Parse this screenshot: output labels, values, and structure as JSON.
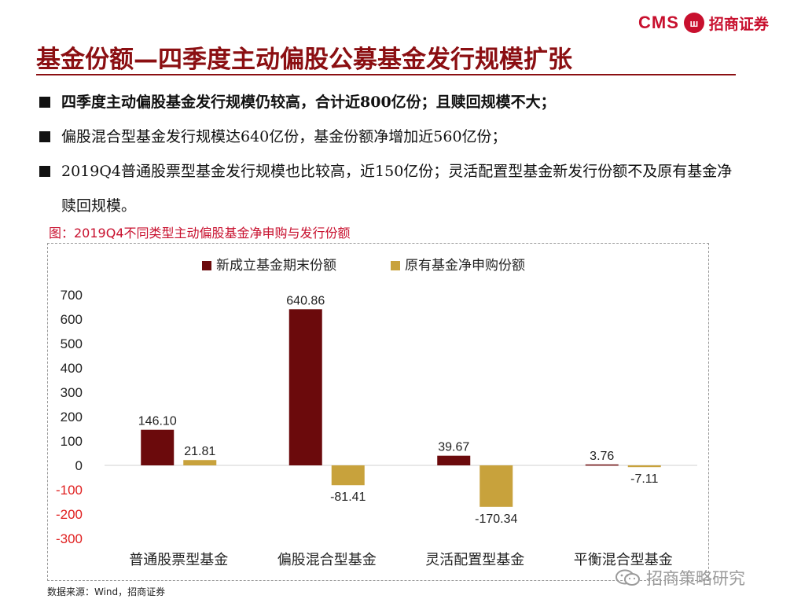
{
  "logo": {
    "cms": "CMS",
    "mark": "ш",
    "name": "招商证券"
  },
  "page_title": "基金份额—四季度主动偏股公募基金发行规模扩张",
  "bullets": [
    "四季度主动偏股基金发行规模仍较高，合计近800亿份；且赎回规模不大；",
    "偏股混合型基金发行规模达640亿份，基金份额净增加近560亿份；",
    "2019Q4普通股票型基金发行规模也比较高，近150亿份；灵活配置型基金新发行份额不及原有基金净赎回规模。"
  ],
  "figure_caption": "图：2019Q4不同类型主动偏股基金净申购与发行份额",
  "source": "数据来源：Wind，招商证券",
  "watermark": "招商策略研究",
  "colors": {
    "accent": "#8b0f12",
    "series_new": "#6b0a0c",
    "series_existing": "#c8a23c",
    "negative_tick": "#e02020"
  },
  "chart_data": {
    "type": "bar",
    "categories": [
      "普通股票型基金",
      "偏股混合型基金",
      "灵活配置型基金",
      "平衡混合型基金"
    ],
    "series": [
      {
        "name": "新成立基金期末份额",
        "values": [
          146.1,
          640.86,
          39.67,
          3.76
        ],
        "labels": [
          "146.10",
          "640.86",
          "39.67",
          "3.76"
        ]
      },
      {
        "name": "原有基金净申购份额",
        "values": [
          21.81,
          -81.41,
          -170.34,
          -7.11
        ],
        "labels": [
          "21.81",
          "-81.41",
          "-170.34",
          "-7.11"
        ]
      }
    ],
    "ylim": [
      -300,
      700
    ],
    "yticks": [
      "700",
      "600",
      "500",
      "400",
      "300",
      "200",
      "100",
      "0",
      "-100",
      "-200",
      "-300"
    ],
    "legend_position": "top-center",
    "grid": false
  }
}
